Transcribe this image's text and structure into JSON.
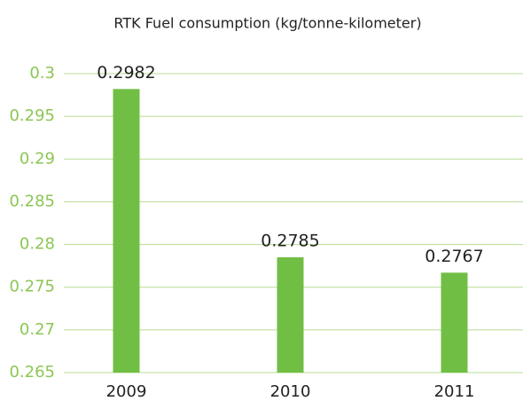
{
  "chart_data": {
    "type": "bar",
    "title": "RTK Fuel consumption (kg/tonne-kilometer)",
    "categories": [
      "2009",
      "2010",
      "2011"
    ],
    "values": [
      0.2982,
      0.2785,
      0.2767
    ],
    "color": "#70bf44",
    "ylim": [
      0.265,
      0.3
    ],
    "yticks": [
      0.265,
      0.27,
      0.275,
      0.28,
      0.285,
      0.29,
      0.295,
      0.3
    ],
    "grid": true
  }
}
